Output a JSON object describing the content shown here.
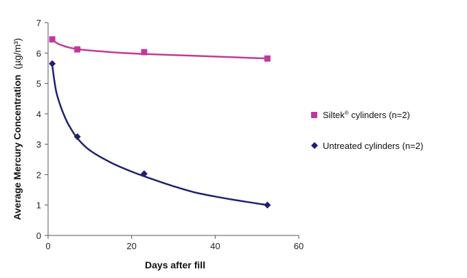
{
  "chart_data": {
    "type": "scatter",
    "title": "",
    "xlabel": "Days after fill",
    "ylabel": "Average Mercury Concentration",
    "ylabel_unit": "(µg/m³)",
    "xlim": [
      0,
      60
    ],
    "ylim": [
      0,
      7
    ],
    "xticks": [
      0,
      20,
      40,
      60
    ],
    "yticks": [
      0,
      1,
      2,
      3,
      4,
      5,
      6,
      7
    ],
    "grid": false,
    "legend_position": "right",
    "series": [
      {
        "name": "Siltek® cylinders (n=2)",
        "legend_label": "Siltek",
        "legend_sup": "®",
        "legend_rest": " cylinders (n=2)",
        "color": "#c0399a",
        "marker": "square",
        "x": [
          1,
          7,
          23,
          52.5
        ],
        "y": [
          6.45,
          6.12,
          6.03,
          5.82
        ],
        "trend": {
          "x": [
            1,
            3,
            7,
            15,
            23,
            35,
            45,
            52.5
          ],
          "y": [
            6.43,
            6.27,
            6.13,
            6.03,
            5.97,
            5.91,
            5.86,
            5.82
          ]
        }
      },
      {
        "name": "Untreated cylinders (n=2)",
        "legend_label": "Untreated cylinders (n=2)",
        "color": "#1e1f6e",
        "marker": "diamond",
        "x": [
          1,
          7,
          23,
          52.5
        ],
        "y": [
          5.65,
          3.25,
          2.03,
          1.0
        ],
        "trend": {
          "x": [
            1,
            1.5,
            2,
            3,
            4,
            5,
            7,
            10,
            15,
            20,
            25,
            30,
            35,
            40,
            45,
            52.5
          ],
          "y": [
            5.6,
            5.1,
            4.7,
            4.25,
            3.9,
            3.62,
            3.2,
            2.8,
            2.4,
            2.1,
            1.85,
            1.62,
            1.42,
            1.28,
            1.16,
            1.0
          ]
        }
      }
    ]
  }
}
